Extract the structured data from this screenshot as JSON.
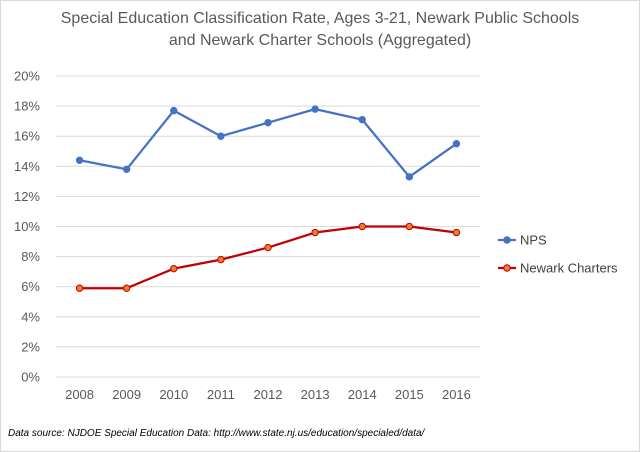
{
  "chart_data": {
    "type": "line",
    "title_line1": "Special Education Classification Rate, Ages 3-21, Newark Public Schools",
    "title_line2": "and Newark Charter Schools (Aggregated)",
    "categories": [
      "2008",
      "2009",
      "2010",
      "2011",
      "2012",
      "2013",
      "2014",
      "2015",
      "2016"
    ],
    "ylim": [
      0,
      20
    ],
    "ytick_step": 2,
    "ytick_labels": [
      "0%",
      "2%",
      "4%",
      "6%",
      "8%",
      "10%",
      "12%",
      "14%",
      "16%",
      "18%",
      "20%"
    ],
    "series": [
      {
        "name": "NPS",
        "color": "#4472c4",
        "values": [
          14.4,
          13.8,
          17.7,
          16.0,
          16.9,
          17.8,
          17.1,
          13.3,
          15.5
        ]
      },
      {
        "name": "Newark Charters",
        "color": "#c00000",
        "marker_fill": "#ed7d31",
        "values": [
          5.9,
          5.9,
          7.2,
          7.8,
          8.6,
          9.6,
          10.0,
          10.0,
          9.6
        ]
      }
    ],
    "legend_position": "right",
    "grid": true,
    "source_note": "Data source: NJDOE Special Education Data: http://www.state.nj.us/education/specialed/data/"
  }
}
